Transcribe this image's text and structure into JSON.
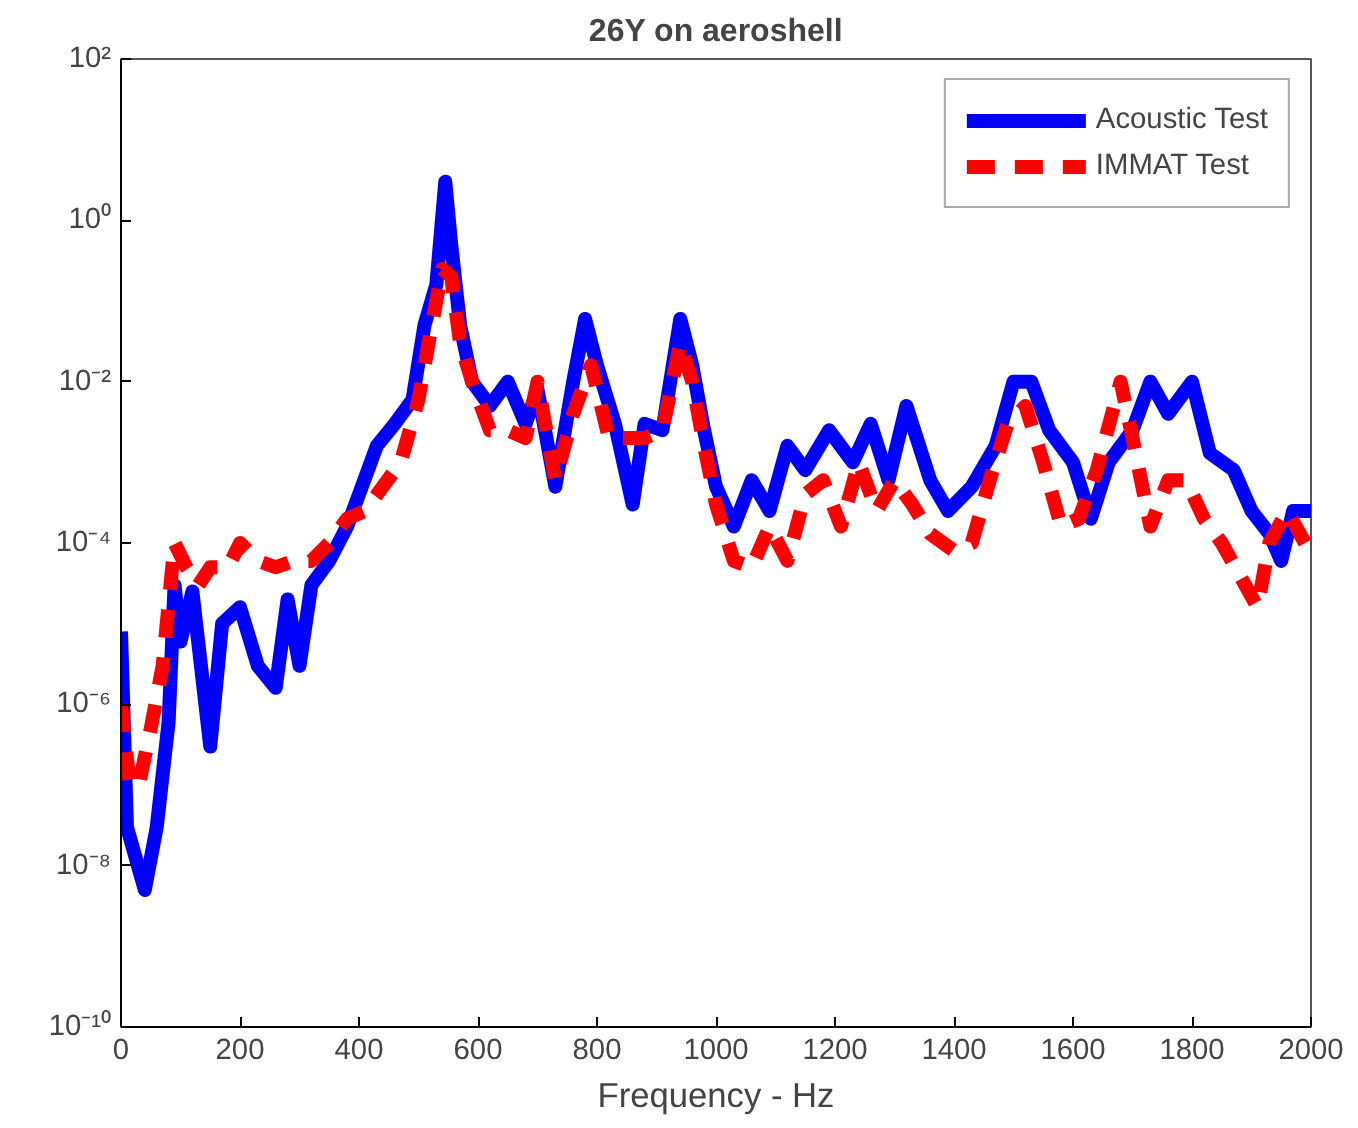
{
  "chart_data": {
    "type": "line",
    "title": "26Y on aeroshell",
    "xlabel": "Frequency - Hz",
    "log": "y",
    "grid": false,
    "legend": "top right",
    "xlim": [
      0,
      2000
    ],
    "xticks": [
      0,
      200,
      400,
      600,
      800,
      1000,
      1200,
      1400,
      1600,
      1800,
      2000
    ],
    "ylim": [
      1e-10,
      100
    ],
    "yticks": [
      {
        "value": 1e-10,
        "label": "10⁻¹⁰"
      },
      {
        "value": 1e-08,
        "label": "10⁻⁸"
      },
      {
        "value": 1e-06,
        "label": "10⁻⁶"
      },
      {
        "value": 0.0001,
        "label": "10⁻⁴"
      },
      {
        "value": 0.01,
        "label": "10⁻²"
      },
      {
        "value": 1,
        "label": "10⁰"
      },
      {
        "value": 100,
        "label": "10²"
      }
    ],
    "series": [
      {
        "name": "Acoustic Test",
        "color": "#0000ff",
        "line_style": "solid",
        "x": [
          0,
          10,
          40,
          60,
          80,
          90,
          100,
          120,
          150,
          170,
          200,
          230,
          260,
          280,
          300,
          320,
          350,
          380,
          400,
          430,
          460,
          490,
          510,
          530,
          545,
          555,
          570,
          590,
          620,
          650,
          680,
          700,
          730,
          760,
          780,
          800,
          830,
          860,
          880,
          910,
          940,
          960,
          980,
          1000,
          1030,
          1060,
          1090,
          1120,
          1150,
          1190,
          1230,
          1260,
          1290,
          1320,
          1360,
          1390,
          1430,
          1470,
          1500,
          1530,
          1560,
          1600,
          1630,
          1660,
          1700,
          1730,
          1760,
          1800,
          1830,
          1870,
          1900,
          1930,
          1950,
          1970,
          2000
        ],
        "values": [
          8e-06,
          3e-08,
          5e-09,
          3e-08,
          6e-07,
          3e-05,
          6e-06,
          2.5e-05,
          3e-07,
          1e-05,
          1.6e-05,
          3e-06,
          1.6e-06,
          2e-05,
          3e-06,
          3e-05,
          6e-05,
          0.00016,
          0.0004,
          0.0016,
          0.003,
          0.006,
          0.05,
          0.16,
          3,
          0.5,
          0.05,
          0.01,
          0.005,
          0.01,
          0.003,
          0.008,
          0.0005,
          0.01,
          0.06,
          0.016,
          0.003,
          0.0003,
          0.003,
          0.0025,
          0.06,
          0.016,
          0.0025,
          0.0005,
          0.00016,
          0.0006,
          0.00025,
          0.0016,
          0.0008,
          0.0025,
          0.001,
          0.003,
          0.0006,
          0.005,
          0.0006,
          0.00025,
          0.0005,
          0.0016,
          0.01,
          0.01,
          0.0025,
          0.001,
          0.0002,
          0.001,
          0.0025,
          0.01,
          0.004,
          0.01,
          0.0013,
          0.0008,
          0.00025,
          0.00013,
          6e-05,
          0.00025,
          0.00025
        ]
      },
      {
        "name": "IMMAT Test",
        "color": "#ff0000",
        "line_style": "dashed",
        "x": [
          0,
          15,
          30,
          50,
          70,
          90,
          110,
          130,
          150,
          180,
          200,
          230,
          260,
          290,
          320,
          350,
          380,
          410,
          440,
          470,
          500,
          520,
          540,
          555,
          570,
          590,
          620,
          650,
          680,
          700,
          730,
          760,
          790,
          820,
          850,
          880,
          910,
          940,
          960,
          980,
          1000,
          1030,
          1060,
          1090,
          1120,
          1150,
          1180,
          1210,
          1240,
          1270,
          1300,
          1330,
          1360,
          1400,
          1430,
          1460,
          1490,
          1520,
          1550,
          1580,
          1610,
          1640,
          1680,
          1700,
          1730,
          1760,
          1790,
          1820,
          1850,
          1880,
          1910,
          1930,
          1960,
          1990
        ],
        "values": [
          1e-06,
          1e-07,
          1e-07,
          5e-07,
          3e-06,
          0.0001,
          5e-05,
          3e-05,
          5e-05,
          5e-05,
          0.0001,
          6e-05,
          5e-05,
          6e-05,
          6e-05,
          0.0001,
          0.0002,
          0.00025,
          0.0005,
          0.001,
          0.006,
          0.04,
          0.25,
          0.2,
          0.03,
          0.01,
          0.0025,
          0.0025,
          0.002,
          0.01,
          0.0006,
          0.004,
          0.016,
          0.002,
          0.002,
          0.002,
          0.0025,
          0.03,
          0.01,
          0.0016,
          0.0003,
          6e-05,
          5e-05,
          0.00016,
          6e-05,
          0.0004,
          0.0006,
          0.00016,
          0.001,
          0.00025,
          0.0006,
          0.0003,
          0.00013,
          8e-05,
          0.0001,
          0.0006,
          0.003,
          0.005,
          0.001,
          0.00016,
          0.0002,
          0.0008,
          0.01,
          0.002,
          0.00016,
          0.0006,
          0.0006,
          0.0002,
          0.0001,
          4e-05,
          1.6e-05,
          0.0001,
          0.00025,
          0.0001
        ]
      }
    ]
  }
}
